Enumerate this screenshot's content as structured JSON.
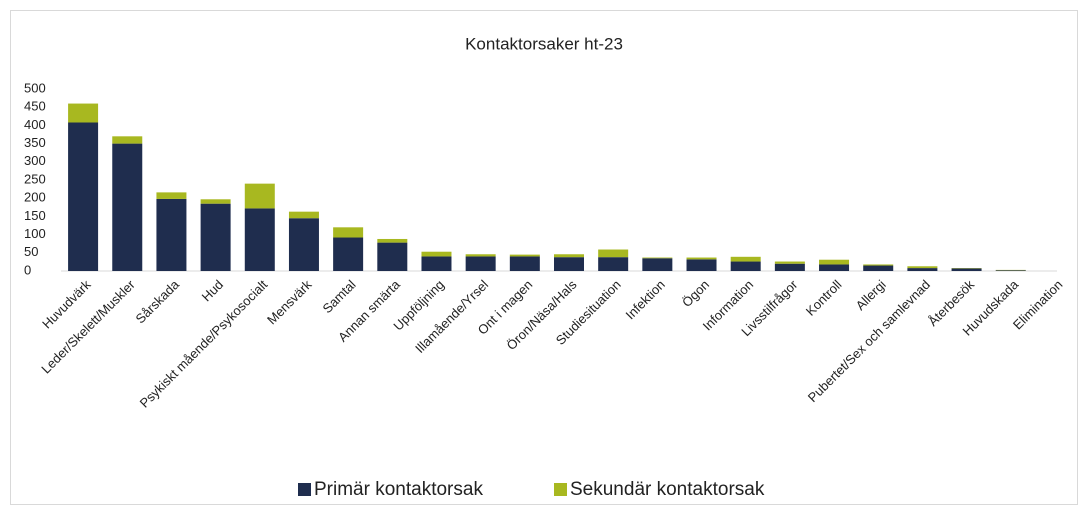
{
  "chart_data": {
    "type": "stacked_bar",
    "title": "Kontaktorsaker ht-23",
    "categories": [
      "Huvudvärk",
      "Leder/Skelett/Muskler",
      "Sårskada",
      "Hud",
      "Psykiskt mående/Psykosocialt",
      "Mensvärk",
      "Samtal",
      "Annan smärta",
      "Uppföljning",
      "Illamående/Yrsel",
      "Ont i magen",
      "Öron/Näsa/Hals",
      "Studiesituation",
      "Infektion",
      "Ögon",
      "Information",
      "Livsstilfrågor",
      "Kontroll",
      "Allergi",
      "Pubertet/Sex och samlevnad",
      "Återbesök",
      "Huvudskada",
      "Elimination"
    ],
    "series": [
      {
        "name": "Primär kontaktorsak",
        "color": "#1f2d4e",
        "values": [
          408,
          350,
          198,
          185,
          172,
          145,
          92,
          78,
          40,
          40,
          40,
          38,
          38,
          35,
          32,
          26,
          20,
          18,
          15,
          8,
          7,
          2,
          0
        ]
      },
      {
        "name": "Sekundär kontaktorsak",
        "color": "#a8b820",
        "values": [
          52,
          20,
          18,
          12,
          68,
          18,
          28,
          10,
          13,
          6,
          5,
          8,
          21,
          2,
          5,
          13,
          6,
          13,
          3,
          5,
          1,
          1,
          0
        ]
      }
    ],
    "ylim": [
      0,
      500
    ],
    "yticks": [
      0,
      50,
      100,
      150,
      200,
      250,
      300,
      350,
      400,
      450,
      500
    ],
    "legend": "bottom"
  }
}
